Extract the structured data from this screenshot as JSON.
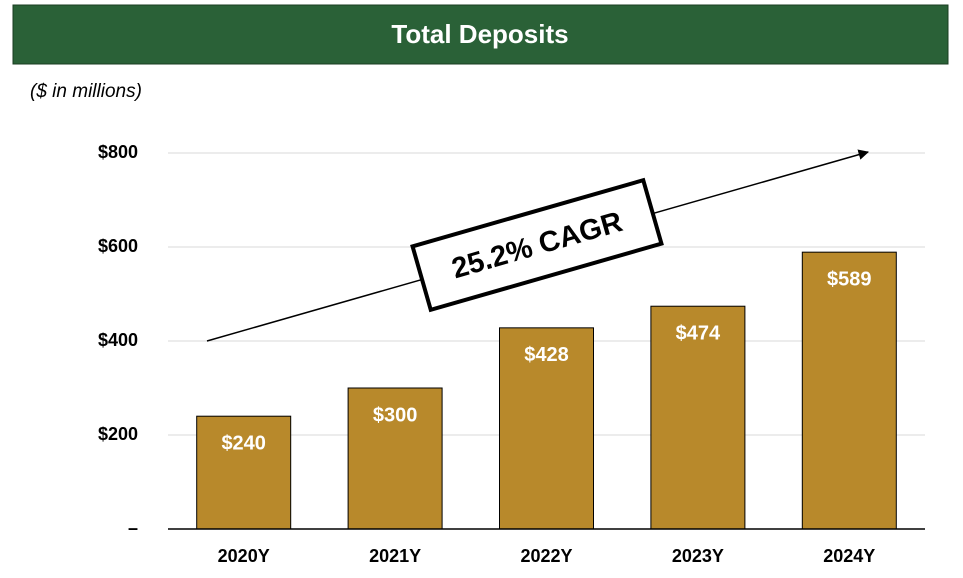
{
  "chart_data": {
    "type": "bar",
    "title": "Total Deposits",
    "subtitle": "($ in millions)",
    "annotation": "25.2% CAGR",
    "categories": [
      "2020Y",
      "2021Y",
      "2022Y",
      "2023Y",
      "2024Y"
    ],
    "values": [
      240,
      300,
      428,
      474,
      589
    ],
    "value_labels": [
      "$240",
      "$300",
      "$428",
      "$474",
      "$589"
    ],
    "color": "#b8892b",
    "ylim": [
      0,
      800
    ],
    "yticks": [
      {
        "value": 0,
        "label": "–"
      },
      {
        "value": 200,
        "label": "$200"
      },
      {
        "value": 400,
        "label": "$400"
      },
      {
        "value": 600,
        "label": "$600"
      },
      {
        "value": 800,
        "label": "$800"
      }
    ],
    "grid": true
  }
}
